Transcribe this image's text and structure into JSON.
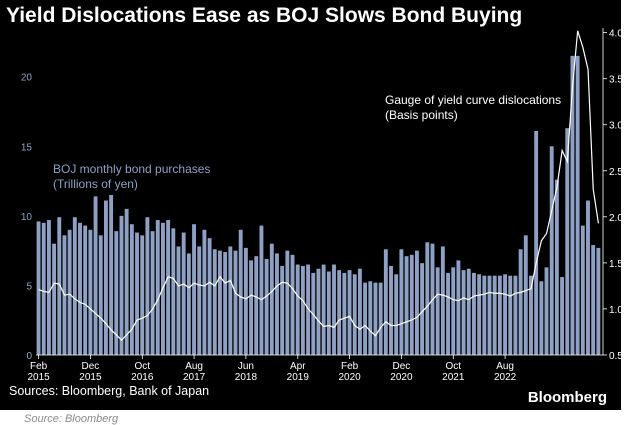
{
  "title": "Yield Dislocations Ease as BOJ Slows Bond Buying",
  "sources": "Sources: Bloomberg, Bank of Japan",
  "brand": "Bloomberg",
  "below_caption": "Source: Bloomberg",
  "colors": {
    "background": "#000000",
    "bars": "#8ea0c4",
    "line": "#ffffff",
    "left_axis": "#8ea0c4",
    "right_axis": "#ffffff"
  },
  "chart_data": {
    "type": "bar+line",
    "bar_series": {
      "name": "BOJ monthly bond purchases",
      "label_line1": "BOJ monthly bond purchases",
      "label_line2": "(Trillions of yen)",
      "axis": "left",
      "ylim": [
        0,
        23.5
      ],
      "ticks": [
        0,
        5,
        10,
        15,
        20
      ],
      "start": "2015-02",
      "values": [
        9.6,
        9.5,
        9.7,
        8.0,
        9.9,
        8.6,
        9.0,
        9.9,
        9.5,
        9.3,
        9.0,
        11.4,
        8.6,
        11.1,
        11.5,
        8.9,
        10.0,
        10.5,
        9.4,
        8.8,
        8.6,
        9.9,
        8.9,
        9.7,
        9.5,
        9.7,
        9.1,
        7.8,
        8.8,
        7.3,
        9.4,
        7.8,
        9.0,
        8.4,
        7.6,
        7.5,
        7.4,
        7.8,
        7.5,
        9.0,
        7.7,
        6.8,
        7.1,
        9.3,
        6.9,
        8.0,
        7.3,
        6.4,
        7.5,
        7.2,
        6.5,
        6.4,
        6.5,
        5.9,
        6.2,
        6.5,
        6.0,
        6.5,
        6.1,
        5.9,
        6.1,
        5.8,
        6.2,
        5.2,
        5.3,
        5.2,
        5.2,
        7.6,
        6.4,
        5.8,
        7.6,
        7.1,
        7.2,
        7.5,
        6.6,
        8.1,
        8.0,
        6.3,
        7.8,
        5.9,
        6.3,
        6.8,
        6.1,
        6.2,
        5.9,
        5.8,
        5.7,
        5.7,
        5.7,
        5.7,
        5.8,
        5.7,
        5.7,
        7.6,
        8.6,
        5.7,
        16.1,
        5.3,
        6.3,
        15.0,
        12.6,
        5.6,
        16.3,
        21.5,
        21.5,
        9.3,
        11.1,
        7.9,
        7.7
      ]
    },
    "line_series": {
      "name": "Gauge of yield curve dislocations",
      "label_line1": "Gauge of yield curve dislocations",
      "label_line2": "(Basis points)",
      "axis": "right",
      "ylim": [
        0.5,
        4.05
      ],
      "ticks": [
        "0.5",
        "1.0",
        "1.5",
        "2.0",
        "2.5",
        "3.0",
        "3.5",
        "4.0"
      ],
      "values": [
        1.21,
        1.19,
        1.18,
        1.28,
        1.27,
        1.15,
        1.16,
        1.11,
        1.07,
        1.05,
        1.0,
        0.95,
        0.9,
        0.84,
        0.77,
        0.72,
        0.66,
        0.72,
        0.78,
        0.88,
        0.9,
        0.93,
        1.0,
        1.1,
        1.23,
        1.35,
        1.33,
        1.25,
        1.27,
        1.23,
        1.28,
        1.26,
        1.25,
        1.29,
        1.25,
        1.35,
        1.28,
        1.31,
        1.17,
        1.13,
        1.11,
        1.15,
        1.13,
        1.1,
        1.14,
        1.19,
        1.25,
        1.29,
        1.28,
        1.22,
        1.14,
        1.09,
        1.0,
        0.94,
        0.87,
        0.81,
        0.82,
        0.8,
        0.88,
        0.9,
        0.92,
        0.82,
        0.78,
        0.82,
        0.76,
        0.71,
        0.8,
        0.86,
        0.82,
        0.82,
        0.84,
        0.86,
        0.88,
        0.91,
        0.97,
        1.03,
        1.1,
        1.16,
        1.15,
        1.13,
        1.1,
        1.09,
        1.12,
        1.1,
        1.14,
        1.15,
        1.16,
        1.18,
        1.17,
        1.17,
        1.16,
        1.14,
        1.17,
        1.18,
        1.2,
        1.22,
        1.5,
        1.74,
        1.82,
        2.07,
        2.32,
        2.72,
        2.6,
        3.41,
        4.02,
        3.84,
        3.6,
        2.3,
        1.93
      ]
    },
    "x_tick_labels": [
      {
        "month": "Feb",
        "year": "2015",
        "index": 0
      },
      {
        "month": "Dec",
        "year": "2015",
        "index": 10
      },
      {
        "month": "Oct",
        "year": "2016",
        "index": 20
      },
      {
        "month": "Aug",
        "year": "2017",
        "index": 30
      },
      {
        "month": "Jun",
        "year": "2018",
        "index": 40
      },
      {
        "month": "Apr",
        "year": "2019",
        "index": 50
      },
      {
        "month": "Feb",
        "year": "2020",
        "index": 60
      },
      {
        "month": "Dec",
        "year": "2020",
        "index": 70
      },
      {
        "month": "Oct",
        "year": "2021",
        "index": 80
      },
      {
        "month": "Aug",
        "year": "2022",
        "index": 90
      }
    ]
  }
}
